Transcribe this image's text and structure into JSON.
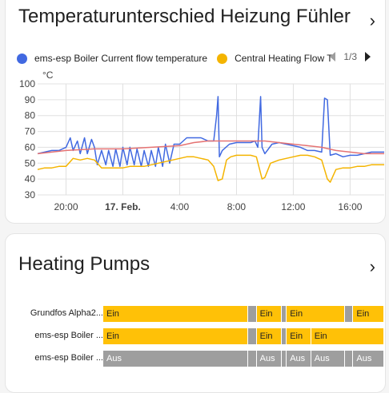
{
  "card1": {
    "title": "Temperaturunterschied Heizung Fühler",
    "legend": [
      {
        "label": "ems-esp Boiler Current flow temperature",
        "color": "#4169e1"
      },
      {
        "label": "Central Heating Flow T",
        "color": "#f4b400"
      }
    ],
    "pager": "1/3",
    "unit": "°C"
  },
  "card2": {
    "title": "Heating Pumps",
    "rows": [
      {
        "label": "Grundfos Alpha2...",
        "segments": [
          {
            "state": "Ein",
            "start": 0.0,
            "end": 0.516
          },
          {
            "state": "",
            "start": 0.516,
            "end": 0.546
          },
          {
            "state": "Ein",
            "start": 0.546,
            "end": 0.636
          },
          {
            "state": "",
            "start": 0.636,
            "end": 0.653
          },
          {
            "state": "Ein",
            "start": 0.653,
            "end": 0.86
          },
          {
            "state": "",
            "start": 0.86,
            "end": 0.89
          },
          {
            "state": "Ein",
            "start": 0.89,
            "end": 1.0
          }
        ]
      },
      {
        "label": "ems-esp Boiler ...",
        "segments": [
          {
            "state": "Ein",
            "start": 0.0,
            "end": 0.516
          },
          {
            "state": "",
            "start": 0.516,
            "end": 0.546
          },
          {
            "state": "Ein",
            "start": 0.546,
            "end": 0.636
          },
          {
            "state": "",
            "start": 0.636,
            "end": 0.653
          },
          {
            "state": "Ein",
            "start": 0.653,
            "end": 0.74
          },
          {
            "state": "Ein",
            "start": 0.74,
            "end": 1.0
          }
        ]
      },
      {
        "label": "ems-esp Boiler ...",
        "segments": [
          {
            "state": "Aus",
            "start": 0.0,
            "end": 0.516
          },
          {
            "state": "",
            "start": 0.516,
            "end": 0.546
          },
          {
            "state": "Aus",
            "start": 0.546,
            "end": 0.636
          },
          {
            "state": "",
            "start": 0.636,
            "end": 0.653
          },
          {
            "state": "Aus",
            "start": 0.653,
            "end": 0.74
          },
          {
            "state": "Aus",
            "start": 0.74,
            "end": 0.86
          },
          {
            "state": "",
            "start": 0.86,
            "end": 0.89
          },
          {
            "state": "Aus",
            "start": 0.89,
            "end": 1.0
          }
        ]
      }
    ]
  },
  "colors": {
    "on": "#ffc107",
    "off": "#9e9e9e",
    "off_text": "#ffffff",
    "on_text": "#212121",
    "blue": "#4169e1",
    "orange": "#f4b400",
    "red": "#e57373",
    "grid": "#e0e0e0"
  },
  "chart_data": {
    "type": "line",
    "ylim": [
      30,
      100
    ],
    "yticks": [
      30,
      40,
      50,
      60,
      70,
      80,
      90,
      100
    ],
    "xlim": [
      0,
      24.4
    ],
    "xticks": [
      {
        "label": "20:00",
        "x": 2,
        "bold": false
      },
      {
        "label": "17. Feb.",
        "x": 6,
        "bold": true
      },
      {
        "label": "4:00",
        "x": 10,
        "bold": false
      },
      {
        "label": "8:00",
        "x": 14,
        "bold": false
      },
      {
        "label": "12:00",
        "x": 18,
        "bold": false
      },
      {
        "label": "16:00",
        "x": 22,
        "bold": false
      }
    ],
    "series": [
      {
        "name": "ems-esp Boiler Current flow temperature",
        "color": "#4169e1",
        "values": [
          [
            0,
            56
          ],
          [
            0.5,
            57
          ],
          [
            1,
            58
          ],
          [
            1.5,
            58
          ],
          [
            2,
            60
          ],
          [
            2.3,
            66
          ],
          [
            2.5,
            58
          ],
          [
            2.8,
            64
          ],
          [
            3,
            56
          ],
          [
            3.3,
            66
          ],
          [
            3.5,
            56
          ],
          [
            3.8,
            65
          ],
          [
            4,
            60
          ],
          [
            4.2,
            49
          ],
          [
            4.5,
            58
          ],
          [
            4.8,
            49
          ],
          [
            5,
            58
          ],
          [
            5.3,
            48
          ],
          [
            5.5,
            59
          ],
          [
            5.8,
            48
          ],
          [
            6,
            60
          ],
          [
            6.3,
            49
          ],
          [
            6.5,
            60
          ],
          [
            6.8,
            49
          ],
          [
            7,
            59
          ],
          [
            7.3,
            48
          ],
          [
            7.5,
            58
          ],
          [
            7.8,
            48
          ],
          [
            8,
            58
          ],
          [
            8.3,
            48
          ],
          [
            8.5,
            60
          ],
          [
            8.8,
            48
          ],
          [
            9,
            62
          ],
          [
            9.3,
            50
          ],
          [
            9.6,
            62
          ],
          [
            10,
            62
          ],
          [
            10.5,
            66
          ],
          [
            11,
            66
          ],
          [
            11.5,
            66
          ],
          [
            12,
            64
          ],
          [
            12.4,
            64
          ],
          [
            12.6,
            80
          ],
          [
            12.7,
            92
          ],
          [
            12.8,
            54
          ],
          [
            13,
            58
          ],
          [
            13.5,
            62
          ],
          [
            14,
            63
          ],
          [
            14.5,
            63
          ],
          [
            15,
            63
          ],
          [
            15.3,
            64
          ],
          [
            15.5,
            60
          ],
          [
            15.7,
            92
          ],
          [
            15.8,
            60
          ],
          [
            16,
            56
          ],
          [
            16.5,
            62
          ],
          [
            17,
            63
          ],
          [
            17.5,
            62
          ],
          [
            18,
            61
          ],
          [
            18.5,
            60
          ],
          [
            19,
            58
          ],
          [
            19.5,
            58
          ],
          [
            20,
            57
          ],
          [
            20.2,
            91
          ],
          [
            20.4,
            90
          ],
          [
            20.6,
            55
          ],
          [
            21,
            56
          ],
          [
            21.5,
            54
          ],
          [
            22,
            55
          ],
          [
            22.5,
            55
          ],
          [
            23,
            56
          ],
          [
            23.5,
            57
          ],
          [
            24.4,
            57
          ]
        ]
      },
      {
        "name": "Central Heating Flow T",
        "color": "#f4b400",
        "values": [
          [
            0,
            46
          ],
          [
            0.5,
            47
          ],
          [
            1,
            47
          ],
          [
            1.5,
            48
          ],
          [
            2,
            48
          ],
          [
            2.5,
            53
          ],
          [
            3,
            52
          ],
          [
            3.5,
            53
          ],
          [
            4,
            52
          ],
          [
            4.5,
            47
          ],
          [
            5,
            47
          ],
          [
            5.5,
            47
          ],
          [
            6,
            47
          ],
          [
            6.5,
            48
          ],
          [
            7,
            48
          ],
          [
            7.5,
            48
          ],
          [
            8,
            49
          ],
          [
            8.5,
            50
          ],
          [
            9,
            51
          ],
          [
            9.5,
            52
          ],
          [
            10,
            53
          ],
          [
            10.5,
            54
          ],
          [
            11,
            54
          ],
          [
            11.5,
            53
          ],
          [
            12,
            52
          ],
          [
            12.4,
            48
          ],
          [
            12.7,
            39
          ],
          [
            13,
            40
          ],
          [
            13.3,
            52
          ],
          [
            13.6,
            54
          ],
          [
            14,
            55
          ],
          [
            14.5,
            55
          ],
          [
            15,
            55
          ],
          [
            15.4,
            54
          ],
          [
            15.8,
            40
          ],
          [
            16,
            41
          ],
          [
            16.4,
            50
          ],
          [
            17,
            52
          ],
          [
            17.5,
            53
          ],
          [
            18,
            54
          ],
          [
            18.5,
            55
          ],
          [
            19,
            55
          ],
          [
            19.5,
            54
          ],
          [
            20,
            52
          ],
          [
            20.4,
            40
          ],
          [
            20.6,
            38
          ],
          [
            21,
            46
          ],
          [
            21.5,
            47
          ],
          [
            22,
            47
          ],
          [
            22.5,
            48
          ],
          [
            23,
            48
          ],
          [
            23.5,
            49
          ],
          [
            24.4,
            49
          ]
        ]
      },
      {
        "name": "",
        "color": "#e57373",
        "values": [
          [
            0,
            56
          ],
          [
            2,
            58
          ],
          [
            4,
            59
          ],
          [
            6,
            59
          ],
          [
            8,
            60
          ],
          [
            10,
            61
          ],
          [
            11,
            63
          ],
          [
            12,
            64
          ],
          [
            13,
            64
          ],
          [
            14,
            64
          ],
          [
            15,
            64
          ],
          [
            16,
            64
          ],
          [
            17,
            63
          ],
          [
            18,
            62
          ],
          [
            19,
            61
          ],
          [
            20,
            60
          ],
          [
            21,
            58
          ],
          [
            22,
            57
          ],
          [
            23,
            56
          ],
          [
            24.4,
            56
          ]
        ]
      }
    ]
  }
}
